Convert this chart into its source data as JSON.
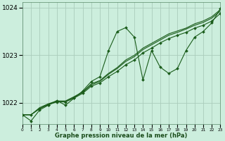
{
  "bg_color": "#cceedd",
  "grid_color": "#aaccbb",
  "line_color": "#1a5c1a",
  "marker_color": "#1a5c1a",
  "xlabel": "Graphe pression niveau de la mer (hPa)",
  "hours": [
    0,
    1,
    2,
    3,
    4,
    5,
    6,
    7,
    8,
    9,
    10,
    11,
    12,
    13,
    14,
    15,
    16,
    17,
    18,
    19,
    20,
    21,
    22,
    23
  ],
  "series_main": [
    1021.75,
    1021.62,
    1021.85,
    1021.95,
    1022.05,
    1021.95,
    1022.1,
    1022.25,
    1022.45,
    1022.55,
    1023.1,
    1023.5,
    1023.58,
    1023.38,
    1022.48,
    1023.1,
    1022.75,
    1022.62,
    1022.72,
    1023.1,
    1023.38,
    1023.5,
    1023.68,
    1023.98
  ],
  "series_line2": [
    1021.75,
    1021.75,
    1021.88,
    1021.96,
    1022.02,
    1022.02,
    1022.1,
    1022.2,
    1022.35,
    1022.42,
    1022.55,
    1022.66,
    1022.8,
    1022.9,
    1023.05,
    1023.15,
    1023.26,
    1023.35,
    1023.42,
    1023.48,
    1023.57,
    1023.63,
    1023.72,
    1023.88
  ],
  "series_line3": [
    1021.75,
    1021.75,
    1021.88,
    1021.97,
    1022.03,
    1022.03,
    1022.12,
    1022.22,
    1022.38,
    1022.45,
    1022.6,
    1022.72,
    1022.87,
    1022.97,
    1023.12,
    1023.22,
    1023.32,
    1023.42,
    1023.48,
    1023.55,
    1023.63,
    1023.69,
    1023.78,
    1023.93
  ],
  "series_line4": [
    1021.75,
    1021.75,
    1021.9,
    1021.98,
    1022.04,
    1022.04,
    1022.13,
    1022.23,
    1022.4,
    1022.47,
    1022.62,
    1022.74,
    1022.9,
    1023.0,
    1023.15,
    1023.25,
    1023.35,
    1023.45,
    1023.51,
    1023.57,
    1023.66,
    1023.72,
    1023.81,
    1023.96
  ],
  "ylim": [
    1021.55,
    1024.12
  ],
  "yticks": [
    1022,
    1023,
    1024
  ],
  "xlim": [
    0,
    23
  ]
}
